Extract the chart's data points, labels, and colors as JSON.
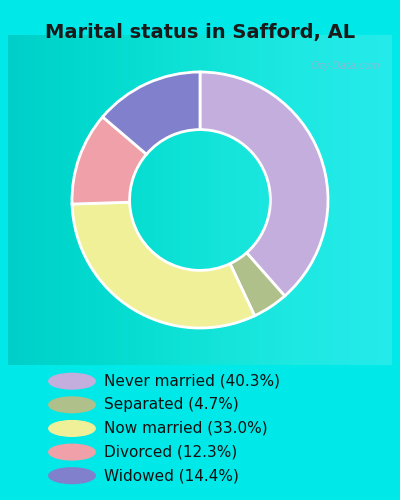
{
  "title": "Marital status in Safford, AL",
  "categories": [
    "Never married",
    "Separated",
    "Now married",
    "Divorced",
    "Widowed"
  ],
  "values": [
    40.3,
    4.7,
    33.0,
    12.3,
    14.4
  ],
  "colors": [
    "#c4aedd",
    "#afc08a",
    "#f0f099",
    "#f0a0a8",
    "#8080cc"
  ],
  "background_outer": "#00e8e8",
  "background_inner_color": "#e0f0e8",
  "legend_labels": [
    "Never married (40.3%)",
    "Separated (4.7%)",
    "Now married (33.0%)",
    "Divorced (12.3%)",
    "Widowed (14.4%)"
  ],
  "legend_colors": [
    "#c4aedd",
    "#afc08a",
    "#f0f099",
    "#f0a0a8",
    "#8080cc"
  ],
  "donut_width": 0.45,
  "title_fontsize": 14,
  "legend_fontsize": 11,
  "watermark": "City-Data.com"
}
